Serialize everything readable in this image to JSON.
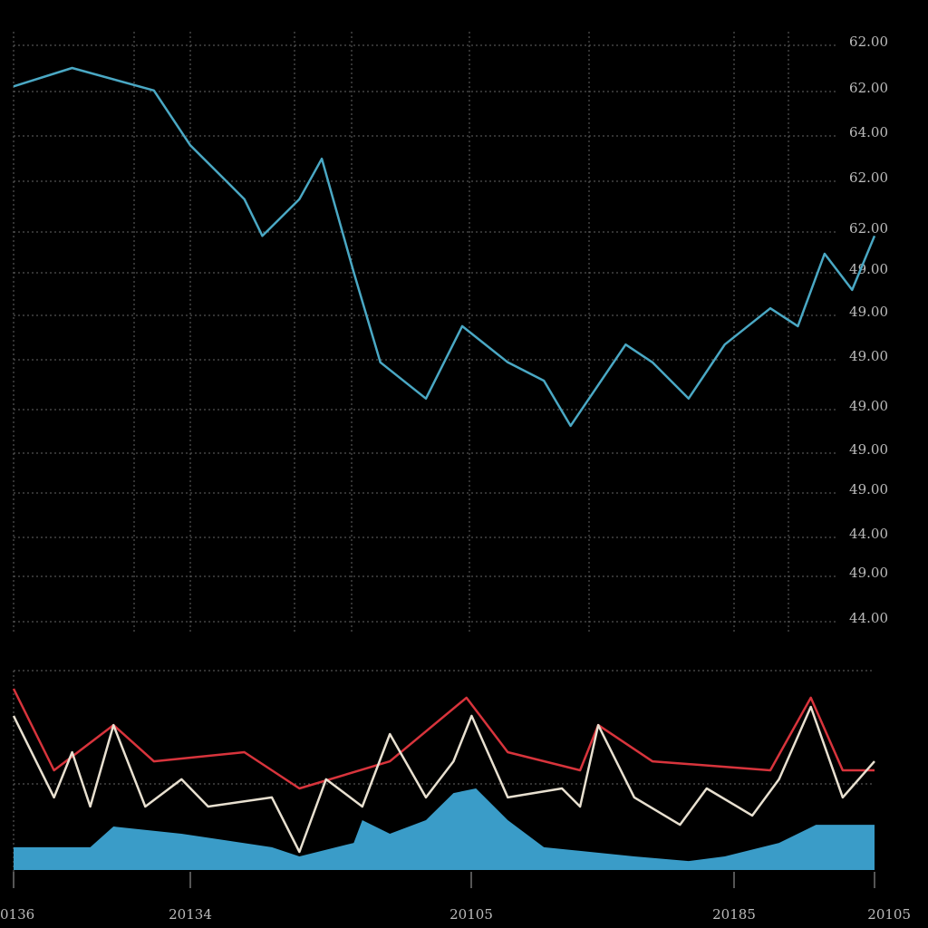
{
  "chart_data": [
    {
      "type": "line",
      "y_labels": [
        "62.00",
        "62.00",
        "64.00",
        "62.00",
        "62.00",
        "49.00",
        "49.00",
        "49.00",
        "49.00",
        "49.00",
        "49.00",
        "44.00",
        "49.00",
        "44.00"
      ],
      "xlim": [
        0,
        100
      ],
      "ylim": [
        0,
        100
      ],
      "series": [
        {
          "color": "#4aa8c4",
          "x": [
            0,
            6.8,
            16.3,
            20.5,
            26.8,
            28.9,
            33.2,
            35.8,
            39.5,
            42.6,
            47.9,
            52.1,
            57.4,
            61.6,
            64.7,
            71.1,
            74.2,
            78.4,
            82.6,
            87.9,
            91.1,
            94.2,
            97.4,
            100
          ],
          "values": [
            90.8,
            93.9,
            90.1,
            80.9,
            71.8,
            65.6,
            71.8,
            78.6,
            59.5,
            44.3,
            38.2,
            50.4,
            44.3,
            41.2,
            33.6,
            47.3,
            44.3,
            38.2,
            47.3,
            53.4,
            50.4,
            62.6,
            56.5,
            65.6
          ]
        }
      ]
    },
    {
      "type": "line",
      "x_labels": [
        "0136",
        "20134",
        "20105",
        "20185",
        "20105"
      ],
      "xlim": [
        0,
        100
      ],
      "ylim": [
        0,
        100
      ],
      "series": [
        {
          "type": "area",
          "color": "#3a9cc8",
          "x": [
            0,
            8.9,
            11.6,
            19.5,
            30,
            33.2,
            39.5,
            40.5,
            43.7,
            47.9,
            51.1,
            53.7,
            57.4,
            61.6,
            72.1,
            78.4,
            82.6,
            88.9,
            93.2,
            100
          ],
          "values": [
            11.4,
            11.4,
            21.8,
            18.2,
            11.4,
            6.8,
            13.6,
            25,
            18.2,
            25,
            38.6,
            40.9,
            25,
            11.4,
            6.8,
            4.5,
            6.8,
            13.6,
            22.7,
            22.7
          ]
        },
        {
          "color": "#d8343c",
          "x": [
            0,
            4.7,
            11.6,
            16.3,
            26.8,
            33.2,
            43.7,
            52.6,
            57.4,
            65.8,
            67.9,
            74.2,
            87.9,
            92.6,
            96.3,
            100
          ],
          "values": [
            90.9,
            50,
            72.7,
            54.5,
            59.1,
            40.9,
            54.5,
            86.4,
            59.1,
            50,
            72.7,
            54.5,
            50,
            86.4,
            50,
            50
          ]
        },
        {
          "color": "#e8e0d0",
          "x": [
            0,
            4.7,
            6.8,
            8.9,
            11.6,
            15.3,
            19.5,
            22.6,
            30,
            33.2,
            36.3,
            40.5,
            43.7,
            47.9,
            51.1,
            53.2,
            57.4,
            63.7,
            65.8,
            67.9,
            72.1,
            77.4,
            80.5,
            85.8,
            88.9,
            92.6,
            96.3,
            100
          ],
          "values": [
            77.3,
            36.4,
            59.1,
            31.8,
            72.7,
            31.8,
            45.5,
            31.8,
            36.4,
            9.1,
            45.5,
            31.8,
            68.2,
            36.4,
            54.5,
            77.3,
            36.4,
            40.9,
            31.8,
            72.7,
            36.4,
            22.7,
            40.9,
            27.3,
            45.5,
            81.8,
            36.4,
            54.5
          ]
        }
      ]
    }
  ]
}
